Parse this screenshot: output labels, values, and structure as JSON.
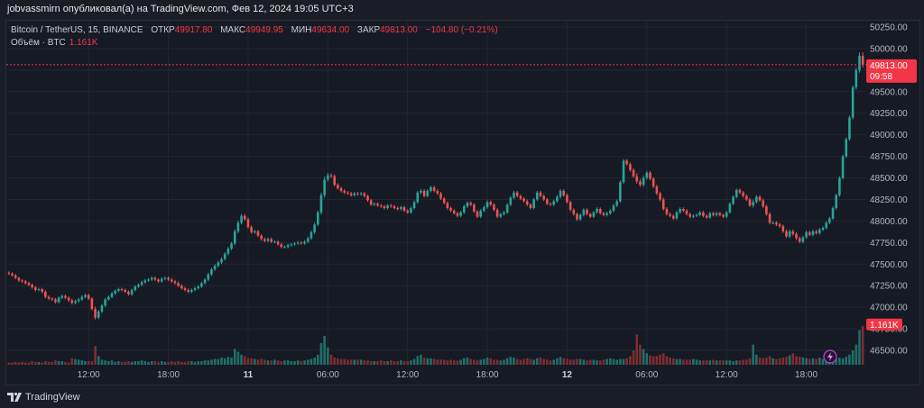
{
  "header": {
    "publisher_line": "jobvassmirn опубликовал(а) на TradingView.com, Фев 12, 2024 19:05 UTC+3"
  },
  "legend": {
    "symbol": "Bitcoin / TetherUS, 15, BINANCE",
    "open_label": "ОТКР",
    "open_value": "49917.80",
    "high_label": "МАКС",
    "high_value": "49949.95",
    "low_label": "МИН",
    "low_value": "49634.00",
    "close_label": "ЗАКР",
    "close_value": "49813.00",
    "change": "−104.80 (−0.21%)",
    "volume_label": "Объём · BTC",
    "volume_value": "1.161K"
  },
  "price_tag": {
    "price": "49813.00",
    "countdown": "09:58"
  },
  "volume_tag": "1.161K",
  "footer": {
    "brand": "TradingView"
  },
  "colors": {
    "up": "#26a69a",
    "down": "#ef5350",
    "up_vol": "#1f6f68",
    "down_vol": "#7c2e31",
    "grid": "#222632",
    "bg": "#161a25",
    "tag": "#f23645"
  },
  "chart_data": {
    "type": "candlestick",
    "title": "Bitcoin / TetherUS, 15, BINANCE",
    "y_ticks": [
      "50250.00",
      "50000.00",
      "49750.00",
      "49500.00",
      "49250.00",
      "49000.00",
      "48750.00",
      "48500.00",
      "48250.00",
      "48000.00",
      "47750.00",
      "47500.00",
      "47250.00",
      "47000.00",
      "46750.00",
      "46500.00"
    ],
    "ylim": [
      46400,
      50400
    ],
    "x_ticks": [
      {
        "label": "12:00",
        "bar": 24,
        "bold": false
      },
      {
        "label": "18:00",
        "bar": 48,
        "bold": false
      },
      {
        "label": "11",
        "bar": 72,
        "bold": true
      },
      {
        "label": "06:00",
        "bar": 96,
        "bold": false
      },
      {
        "label": "12:00",
        "bar": 120,
        "bold": false
      },
      {
        "label": "18:00",
        "bar": 144,
        "bold": false
      },
      {
        "label": "12",
        "bar": 168,
        "bold": true
      },
      {
        "label": "06:00",
        "bar": 192,
        "bold": false
      },
      {
        "label": "12:00",
        "bar": 216,
        "bold": false
      },
      {
        "label": "18:00",
        "bar": 240,
        "bold": false
      }
    ],
    "closes": [
      47390,
      47370,
      47340,
      47310,
      47300,
      47280,
      47260,
      47230,
      47200,
      47210,
      47180,
      47120,
      47100,
      47090,
      47060,
      47110,
      47130,
      47110,
      47080,
      47050,
      47070,
      47090,
      47120,
      47140,
      47100,
      46980,
      46880,
      46950,
      47020,
      47090,
      47120,
      47160,
      47190,
      47210,
      47200,
      47180,
      47150,
      47200,
      47240,
      47260,
      47290,
      47310,
      47320,
      47340,
      47320,
      47300,
      47330,
      47340,
      47320,
      47300,
      47280,
      47250,
      47220,
      47200,
      47180,
      47200,
      47220,
      47240,
      47280,
      47320,
      47380,
      47440,
      47480,
      47520,
      47560,
      47620,
      47680,
      47740,
      47880,
      47980,
      48060,
      48020,
      47930,
      47870,
      47880,
      47830,
      47790,
      47770,
      47790,
      47760,
      47760,
      47730,
      47700,
      47700,
      47720,
      47730,
      47740,
      47750,
      47740,
      47760,
      47800,
      47870,
      47960,
      48100,
      48300,
      48480,
      48530,
      48520,
      48420,
      48380,
      48350,
      48330,
      48320,
      48300,
      48320,
      48310,
      48320,
      48290,
      48240,
      48190,
      48200,
      48180,
      48170,
      48150,
      48180,
      48170,
      48150,
      48140,
      48160,
      48120,
      48100,
      48150,
      48220,
      48330,
      48350,
      48290,
      48350,
      48390,
      48350,
      48320,
      48260,
      48210,
      48150,
      48120,
      48090,
      48060,
      48100,
      48170,
      48210,
      48190,
      48110,
      48050,
      48120,
      48160,
      48220,
      48190,
      48130,
      48050,
      48080,
      48100,
      48190,
      48270,
      48330,
      48290,
      48260,
      48230,
      48190,
      48150,
      48250,
      48330,
      48290,
      48250,
      48200,
      48190,
      48230,
      48280,
      48350,
      48300,
      48220,
      48130,
      48080,
      48020,
      48070,
      48130,
      48080,
      48050,
      48100,
      48140,
      48090,
      48070,
      48090,
      48120,
      48180,
      48230,
      48450,
      48700,
      48660,
      48590,
      48520,
      48460,
      48420,
      48500,
      48560,
      48490,
      48400,
      48320,
      48250,
      48140,
      48080,
      48060,
      48030,
      48100,
      48140,
      48120,
      48080,
      48050,
      48060,
      48070,
      48100,
      48060,
      48040,
      48090,
      48070,
      48090,
      48070,
      48050,
      48100,
      48200,
      48280,
      48360,
      48330,
      48290,
      48250,
      48180,
      48220,
      48280,
      48240,
      48170,
      48080,
      47980,
      47980,
      47960,
      47940,
      47880,
      47820,
      47880,
      47850,
      47800,
      47760,
      47810,
      47870,
      47840,
      47880,
      47860,
      47900,
      47920,
      47980,
      48030,
      48150,
      48300,
      48500,
      48750,
      48950,
      49200,
      49550,
      49750,
      49917,
      49813
    ],
    "volumes": [
      3,
      3,
      4,
      3,
      4,
      3,
      3,
      5,
      4,
      4,
      3,
      5,
      4,
      4,
      6,
      5,
      5,
      4,
      3,
      9,
      8,
      7,
      6,
      5,
      5,
      5,
      26,
      12,
      7,
      6,
      5,
      6,
      4,
      5,
      4,
      4,
      5,
      4,
      5,
      5,
      6,
      5,
      4,
      5,
      5,
      4,
      5,
      4,
      4,
      5,
      4,
      5,
      4,
      4,
      5,
      5,
      4,
      5,
      5,
      6,
      6,
      7,
      8,
      8,
      10,
      9,
      11,
      10,
      22,
      18,
      14,
      12,
      9,
      9,
      8,
      7,
      8,
      7,
      6,
      6,
      7,
      6,
      5,
      6,
      6,
      5,
      5,
      6,
      5,
      6,
      7,
      8,
      10,
      14,
      30,
      40,
      24,
      14,
      10,
      9,
      8,
      8,
      7,
      7,
      7,
      7,
      7,
      6,
      6,
      5,
      5,
      5,
      6,
      5,
      5,
      6,
      5,
      5,
      6,
      5,
      5,
      6,
      8,
      12,
      14,
      10,
      9,
      9,
      8,
      7,
      7,
      7,
      6,
      7,
      6,
      6,
      7,
      9,
      10,
      8,
      7,
      6,
      7,
      8,
      10,
      9,
      7,
      7,
      6,
      7,
      9,
      11,
      10,
      8,
      7,
      8,
      9,
      8,
      7,
      9,
      10,
      8,
      7,
      6,
      7,
      9,
      11,
      9,
      8,
      7,
      7,
      8,
      8,
      7,
      6,
      7,
      7,
      6,
      6,
      7,
      8,
      9,
      8,
      7,
      8,
      8,
      9,
      12,
      20,
      42,
      28,
      22,
      16,
      13,
      12,
      12,
      14,
      16,
      12,
      10,
      9,
      8,
      8,
      7,
      7,
      7,
      8,
      7,
      6,
      6,
      6,
      6,
      7,
      6,
      6,
      6,
      6,
      6,
      5,
      6,
      6,
      7,
      7,
      9,
      28,
      14,
      10,
      9,
      10,
      12,
      9,
      8,
      9,
      10,
      11,
      13,
      16,
      12,
      11,
      10,
      9,
      8,
      9,
      8,
      10,
      8,
      9,
      7,
      8,
      8,
      10,
      9,
      11,
      14,
      20,
      28,
      48,
      54,
      70,
      80,
      110,
      125,
      75,
      32
    ]
  }
}
